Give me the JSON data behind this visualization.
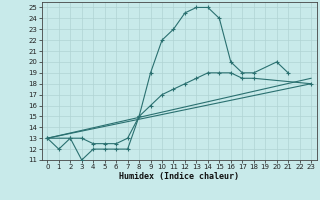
{
  "bg_color": "#c8eaea",
  "grid_color": "#b0d4d4",
  "line_color": "#2a7070",
  "xlabel": "Humidex (Indice chaleur)",
  "xlim": [
    -0.5,
    23.5
  ],
  "ylim": [
    11,
    25.5
  ],
  "xticks": [
    0,
    1,
    2,
    3,
    4,
    5,
    6,
    7,
    8,
    9,
    10,
    11,
    12,
    13,
    14,
    15,
    16,
    17,
    18,
    19,
    20,
    21,
    22,
    23
  ],
  "yticks": [
    11,
    12,
    13,
    14,
    15,
    16,
    17,
    18,
    19,
    20,
    21,
    22,
    23,
    24,
    25
  ],
  "line1_x": [
    0,
    1,
    2,
    3,
    4,
    5,
    6,
    7,
    8,
    9,
    10,
    11,
    12,
    13,
    14,
    15,
    16,
    17,
    18,
    20,
    21
  ],
  "line1_y": [
    13,
    12,
    13,
    11,
    12,
    12,
    12,
    12,
    15,
    19,
    22,
    23,
    24.5,
    25,
    25,
    24,
    20,
    19,
    19,
    20,
    19
  ],
  "line2_x": [
    0,
    2,
    3,
    4,
    5,
    6,
    7,
    8,
    9,
    10,
    11,
    12,
    13,
    14,
    15,
    16,
    17,
    18,
    23
  ],
  "line2_y": [
    13,
    13,
    13,
    12.5,
    12.5,
    12.5,
    13,
    15,
    16,
    17,
    17.5,
    18,
    18.5,
    19,
    19,
    19,
    18.5,
    18.5,
    18
  ],
  "line3_x": [
    0,
    23
  ],
  "line3_y": [
    13,
    18
  ],
  "line4_x": [
    0,
    23
  ],
  "line4_y": [
    13,
    18.5
  ],
  "tick_fontsize": 5,
  "xlabel_fontsize": 6,
  "linewidth": 0.8,
  "markersize": 3
}
